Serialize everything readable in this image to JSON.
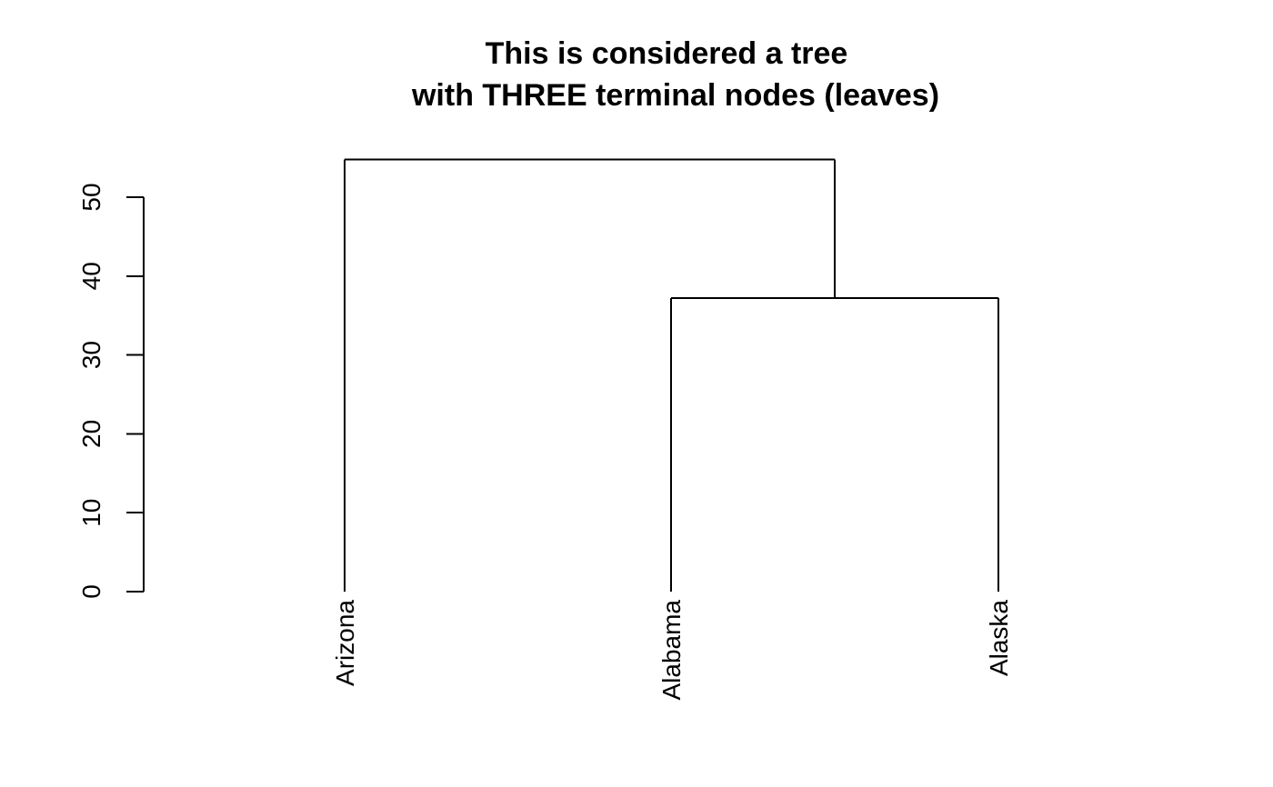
{
  "chart_data": {
    "type": "dendrogram",
    "title_lines": [
      "This is considered a tree",
      "with THREE terminal nodes (leaves)"
    ],
    "xlabel": "",
    "ylabel": "",
    "ylim": [
      0,
      50
    ],
    "y_ticks": [
      0,
      10,
      20,
      30,
      40,
      50
    ],
    "leaves": [
      "Arizona",
      "Alabama",
      "Alaska"
    ],
    "merges": [
      {
        "left": "Alabama",
        "right": "Alaska",
        "height": 37.2
      },
      {
        "left": "Arizona",
        "right": "Alabama+Alaska",
        "height": 54.8
      }
    ],
    "line_color": "#000000",
    "background": "#ffffff",
    "grid": false
  }
}
